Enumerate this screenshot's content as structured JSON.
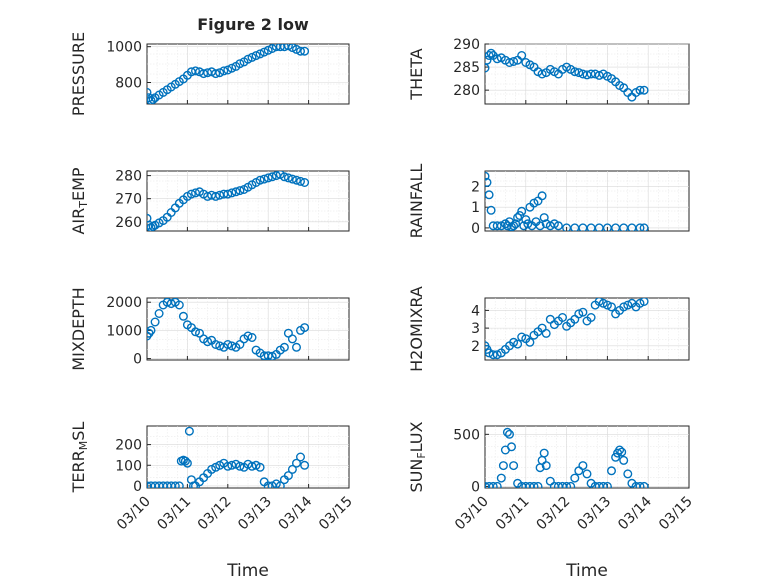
{
  "figure": {
    "title": "Figure 2 low",
    "xlabel": "Time",
    "marker_color": "#0072BD"
  },
  "chart_data": [
    {
      "type": "scatter",
      "name": "pressure",
      "title": "Figure 2 low",
      "ylabel": "PRESSURE",
      "ylabel_main": "PRESSURE",
      "ylabel_sub": "",
      "ylabel_tail": "",
      "ylim": [
        680,
        1015
      ],
      "yticks": [
        800,
        1000
      ],
      "xlim": [
        0,
        5
      ],
      "xticks": [],
      "xlabel": "",
      "x": [
        0.0,
        0.05,
        0.1,
        0.15,
        0.2,
        0.3,
        0.4,
        0.5,
        0.6,
        0.7,
        0.8,
        0.9,
        1.0,
        1.1,
        1.2,
        1.3,
        1.4,
        1.5,
        1.6,
        1.7,
        1.8,
        1.9,
        2.0,
        2.1,
        2.2,
        2.3,
        2.4,
        2.5,
        2.6,
        2.7,
        2.8,
        2.9,
        3.0,
        3.1,
        3.2,
        3.3,
        3.4,
        3.5,
        3.6,
        3.7,
        3.8,
        3.9
      ],
      "y": [
        745,
        715,
        700,
        705,
        715,
        730,
        745,
        760,
        775,
        790,
        805,
        820,
        840,
        860,
        865,
        860,
        850,
        855,
        860,
        850,
        855,
        865,
        870,
        880,
        890,
        905,
        915,
        930,
        940,
        950,
        960,
        970,
        980,
        990,
        1000,
        1000,
        1000,
        1005,
        995,
        985,
        975,
        975
      ]
    },
    {
      "type": "scatter",
      "name": "theta",
      "ylabel": "THETA",
      "ylabel_main": "THETA",
      "ylabel_sub": "",
      "ylabel_tail": "",
      "ylim": [
        277,
        290
      ],
      "yticks": [
        280,
        285,
        290
      ],
      "xlim": [
        0,
        5
      ],
      "xticks": [],
      "xlabel": "",
      "x": [
        0.0,
        0.05,
        0.1,
        0.15,
        0.2,
        0.3,
        0.4,
        0.5,
        0.6,
        0.7,
        0.8,
        0.9,
        1.0,
        1.1,
        1.2,
        1.3,
        1.4,
        1.5,
        1.6,
        1.7,
        1.8,
        1.9,
        2.0,
        2.1,
        2.2,
        2.3,
        2.4,
        2.5,
        2.6,
        2.7,
        2.8,
        2.9,
        3.0,
        3.1,
        3.2,
        3.3,
        3.4,
        3.5,
        3.6,
        3.7,
        3.8,
        3.9
      ],
      "y": [
        284.8,
        286.5,
        287.5,
        288,
        287.5,
        286.8,
        287,
        286.5,
        286,
        286.2,
        286.5,
        287.5,
        286,
        285.5,
        285,
        284,
        283.5,
        283.8,
        284.5,
        284,
        283.5,
        284.5,
        285,
        284.5,
        284,
        283.8,
        283.5,
        283.3,
        283.5,
        283.5,
        283.2,
        283.5,
        283,
        282.5,
        281.8,
        281,
        280.5,
        279.5,
        278.5,
        279.5,
        280,
        280
      ]
    },
    {
      "type": "scatter",
      "name": "air_temp",
      "ylabel": "AIR_TEMP",
      "ylabel_main": "AIR",
      "ylabel_sub": "T",
      "ylabel_tail": "EMP",
      "ylim": [
        256,
        282
      ],
      "yticks": [
        260,
        270,
        280
      ],
      "xlim": [
        0,
        5
      ],
      "xticks": [],
      "xlabel": "",
      "x": [
        0.0,
        0.05,
        0.1,
        0.15,
        0.2,
        0.3,
        0.4,
        0.5,
        0.6,
        0.7,
        0.8,
        0.9,
        1.0,
        1.1,
        1.2,
        1.3,
        1.4,
        1.5,
        1.6,
        1.7,
        1.8,
        1.9,
        2.0,
        2.1,
        2.2,
        2.3,
        2.4,
        2.5,
        2.6,
        2.7,
        2.8,
        2.9,
        3.0,
        3.1,
        3.2,
        3.3,
        3.4,
        3.5,
        3.6,
        3.7,
        3.8,
        3.9
      ],
      "y": [
        261.5,
        258.5,
        257.5,
        258,
        258.5,
        259.5,
        260.5,
        262,
        264,
        266,
        268,
        269.5,
        271,
        272,
        272.5,
        273,
        272,
        271,
        271.5,
        271,
        271.5,
        272,
        272,
        272.5,
        273,
        273.5,
        274,
        275,
        276,
        277,
        278,
        278.5,
        279,
        279.5,
        280,
        280.5,
        279.5,
        279,
        278.5,
        278,
        277.5,
        277
      ]
    },
    {
      "type": "scatter",
      "name": "rainfall",
      "ylabel": "RAINFALL",
      "ylabel_main": "RAINFALL",
      "ylabel_sub": "",
      "ylabel_tail": "",
      "ylim": [
        -0.15,
        2.75
      ],
      "yticks": [
        0,
        1,
        2
      ],
      "xlim": [
        0,
        5
      ],
      "xticks": [],
      "xlabel": "",
      "x": [
        0.0,
        0.05,
        0.1,
        0.15,
        0.2,
        0.3,
        0.4,
        0.5,
        0.55,
        0.6,
        0.65,
        0.7,
        0.75,
        0.8,
        0.85,
        0.9,
        0.95,
        1.0,
        1.05,
        1.1,
        1.15,
        1.2,
        1.25,
        1.3,
        1.35,
        1.4,
        1.45,
        1.5,
        1.6,
        1.7,
        1.8,
        2.0,
        2.2,
        2.4,
        2.6,
        2.8,
        3.0,
        3.2,
        3.4,
        3.6,
        3.8,
        3.9
      ],
      "y": [
        2.5,
        2.2,
        1.6,
        0.85,
        0.1,
        0.1,
        0.1,
        0.2,
        0.1,
        0.3,
        0.05,
        0.1,
        0.2,
        0.5,
        0.6,
        0.8,
        0.1,
        0.4,
        0.2,
        1.0,
        0.1,
        1.2,
        0.3,
        1.3,
        0.1,
        1.55,
        0.5,
        0.2,
        0.1,
        0.2,
        0.1,
        0,
        0,
        0,
        0,
        0,
        0,
        0,
        0,
        0,
        0,
        0
      ]
    },
    {
      "type": "scatter",
      "name": "mixdepth",
      "ylabel": "MIXDEPTH",
      "ylabel_main": "MIXDEPTH",
      "ylabel_sub": "",
      "ylabel_tail": "",
      "ylim": [
        -50,
        2150
      ],
      "yticks": [
        0,
        1000,
        2000
      ],
      "xlim": [
        0,
        5
      ],
      "xticks": [],
      "xlabel": "",
      "x": [
        0.0,
        0.05,
        0.1,
        0.2,
        0.3,
        0.4,
        0.5,
        0.6,
        0.7,
        0.8,
        0.9,
        1.0,
        1.1,
        1.2,
        1.3,
        1.4,
        1.5,
        1.6,
        1.7,
        1.8,
        1.9,
        2.0,
        2.1,
        2.2,
        2.3,
        2.4,
        2.5,
        2.6,
        2.7,
        2.8,
        2.9,
        3.0,
        3.1,
        3.2,
        3.3,
        3.4,
        3.5,
        3.6,
        3.7,
        3.8,
        3.9
      ],
      "y": [
        800,
        900,
        1000,
        1300,
        1600,
        1900,
        2000,
        1950,
        2000,
        1900,
        1500,
        1200,
        1100,
        950,
        900,
        700,
        600,
        650,
        500,
        450,
        400,
        500,
        450,
        400,
        500,
        700,
        800,
        750,
        300,
        200,
        100,
        100,
        80,
        150,
        300,
        400,
        900,
        700,
        400,
        1000,
        1100
      ]
    },
    {
      "type": "scatter",
      "name": "h2omixra",
      "ylabel": "H2OMIXRA",
      "ylabel_main": "H2OMIXRA",
      "ylabel_sub": "",
      "ylabel_tail": "",
      "ylim": [
        1.2,
        4.7
      ],
      "yticks": [
        2,
        3,
        4
      ],
      "xlim": [
        0,
        5
      ],
      "xticks": [],
      "xlabel": "",
      "x": [
        0.0,
        0.05,
        0.1,
        0.2,
        0.3,
        0.4,
        0.5,
        0.6,
        0.7,
        0.8,
        0.9,
        1.0,
        1.1,
        1.2,
        1.3,
        1.4,
        1.5,
        1.6,
        1.7,
        1.8,
        1.9,
        2.0,
        2.1,
        2.2,
        2.3,
        2.4,
        2.5,
        2.6,
        2.7,
        2.8,
        2.9,
        3.0,
        3.1,
        3.2,
        3.3,
        3.4,
        3.5,
        3.6,
        3.7,
        3.8,
        3.9
      ],
      "y": [
        2.0,
        1.8,
        1.6,
        1.5,
        1.5,
        1.6,
        1.8,
        2.0,
        2.2,
        2.1,
        2.5,
        2.4,
        2.2,
        2.6,
        2.8,
        3.0,
        2.7,
        3.5,
        3.2,
        3.4,
        3.6,
        3.1,
        3.3,
        3.5,
        3.8,
        3.9,
        3.4,
        3.6,
        4.3,
        4.5,
        4.4,
        4.3,
        4.2,
        3.8,
        4.0,
        4.2,
        4.3,
        4.4,
        4.2,
        4.4,
        4.5
      ]
    },
    {
      "type": "scatter",
      "name": "terr_msl",
      "ylabel": "TERR_MSL",
      "ylabel_main": "TERR",
      "ylabel_sub": "M",
      "ylabel_tail": "SL",
      "ylim": [
        -10,
        290
      ],
      "yticks": [
        0,
        100,
        200
      ],
      "xlim": [
        0,
        5
      ],
      "xticks": [
        "03/10",
        "03/11",
        "03/12",
        "03/13",
        "03/14",
        "03/15"
      ],
      "xlabel": "Time",
      "x": [
        0.0,
        0.1,
        0.2,
        0.3,
        0.4,
        0.5,
        0.6,
        0.7,
        0.8,
        0.85,
        0.9,
        0.95,
        1.0,
        1.05,
        1.1,
        1.15,
        1.2,
        1.3,
        1.4,
        1.5,
        1.6,
        1.7,
        1.8,
        1.9,
        2.0,
        2.1,
        2.2,
        2.3,
        2.4,
        2.5,
        2.6,
        2.7,
        2.8,
        2.9,
        3.0,
        3.1,
        3.2,
        3.3,
        3.4,
        3.5,
        3.6,
        3.7,
        3.8,
        3.9
      ],
      "y": [
        0,
        0,
        0,
        0,
        0,
        0,
        0,
        0,
        0,
        120,
        125,
        120,
        110,
        265,
        30,
        0,
        0,
        20,
        40,
        60,
        80,
        90,
        100,
        110,
        95,
        100,
        105,
        95,
        90,
        105,
        95,
        100,
        90,
        20,
        0,
        0,
        10,
        0,
        30,
        50,
        80,
        110,
        140,
        100
      ]
    },
    {
      "type": "scatter",
      "name": "sun_flux",
      "ylabel": "SUN_FLUX",
      "ylabel_main": "SUN",
      "ylabel_sub": "F",
      "ylabel_tail": "LUX",
      "ylim": [
        -15,
        580
      ],
      "yticks": [
        0,
        500
      ],
      "xlim": [
        0,
        5
      ],
      "xticks": [
        "03/10",
        "03/11",
        "03/12",
        "03/13",
        "03/14",
        "03/15"
      ],
      "xlabel": "Time",
      "x": [
        0.0,
        0.1,
        0.2,
        0.3,
        0.4,
        0.45,
        0.5,
        0.55,
        0.6,
        0.65,
        0.7,
        0.8,
        0.9,
        1.0,
        1.1,
        1.2,
        1.3,
        1.35,
        1.4,
        1.45,
        1.5,
        1.6,
        1.7,
        1.8,
        1.9,
        2.0,
        2.1,
        2.2,
        2.3,
        2.4,
        2.5,
        2.6,
        2.7,
        2.8,
        2.9,
        3.0,
        3.1,
        3.2,
        3.25,
        3.3,
        3.35,
        3.4,
        3.5,
        3.6,
        3.7,
        3.8,
        3.9
      ],
      "y": [
        0,
        0,
        0,
        0,
        80,
        200,
        350,
        520,
        500,
        380,
        200,
        30,
        0,
        0,
        0,
        0,
        0,
        180,
        250,
        320,
        200,
        50,
        0,
        0,
        0,
        0,
        0,
        80,
        150,
        200,
        120,
        30,
        0,
        0,
        0,
        0,
        150,
        280,
        320,
        350,
        330,
        250,
        120,
        30,
        0,
        0,
        0
      ]
    }
  ]
}
